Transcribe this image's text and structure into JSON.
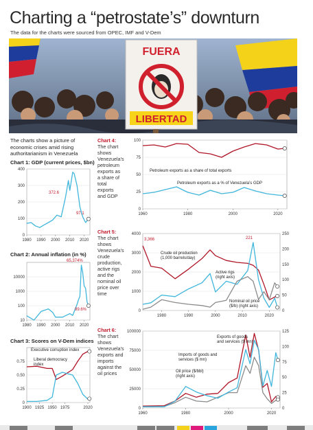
{
  "header": {
    "title": "Charting a “petrostate’s” downturn",
    "subtitle": "The data for the charts were sourced from OPEC, IMF and V-Dem"
  },
  "photo": {
    "sign_line1": "FUERA",
    "sign_line2": "LIBERTAD"
  },
  "intro_text": "The charts show a picture of economic crises amid rising authoritarianism in Venezuela",
  "colors": {
    "red": "#b01426",
    "blue": "#3fb6dc",
    "gray": "#8a8a8a",
    "accent_red": "#c2192b"
  },
  "chart_data": [
    {
      "id": "chart1",
      "type": "line",
      "title": "Chart 1: GDP (current prices, $bn)",
      "x": [
        1980,
        1983,
        1986,
        1989,
        1992,
        1995,
        1998,
        2001,
        2004,
        2007,
        2009,
        2010,
        2012,
        2013,
        2015,
        2017,
        2019,
        2021,
        2023
      ],
      "series": [
        {
          "values": [
            70,
            75,
            55,
            45,
            60,
            75,
            90,
            120,
            110,
            230,
            330,
            270,
            380,
            372.6,
            300,
            170,
            110,
            75,
            97
          ]
        }
      ],
      "ylim": [
        0,
        400
      ],
      "yticks": [
        0,
        100,
        200,
        300,
        400
      ],
      "xticks": [
        1980,
        1990,
        2000,
        2010,
        2020
      ],
      "annotations": [
        "372.6",
        "97.1"
      ]
    },
    {
      "id": "chart2",
      "type": "line",
      "title": "Chart 2: Annual inflation (in %)",
      "scale": "log",
      "x": [
        1980,
        1985,
        1990,
        1995,
        1998,
        2000,
        2005,
        2010,
        2012,
        2015,
        2016,
        2017,
        2018,
        2019,
        2020,
        2021,
        2022,
        2023
      ],
      "series": [
        {
          "values": [
            20,
            10,
            40,
            60,
            35,
            16,
            16,
            28,
            21,
            120,
            255,
            440,
            65374,
            19906,
            2355,
            1588,
            186,
            99.6
          ]
        }
      ],
      "ylim": [
        10,
        100000
      ],
      "yticks": [
        "10",
        "100",
        "1000",
        "10000"
      ],
      "xticks": [
        1980,
        1990,
        2000,
        2010,
        2020
      ],
      "annotations": [
        "65,374%",
        "99.6%"
      ]
    },
    {
      "id": "chart3",
      "type": "line",
      "title": "Chart 3: Scores on V-Dem indices",
      "x": [
        1900,
        1920,
        1940,
        1950,
        1958,
        1970,
        1990,
        2000,
        2010,
        2020,
        2023
      ],
      "series": [
        {
          "name": "Executive corruption index",
          "values": [
            0.65,
            0.66,
            0.62,
            0.62,
            0.42,
            0.48,
            0.6,
            0.75,
            0.88,
            0.93,
            0.93
          ]
        },
        {
          "name": "Liberal democracy index",
          "values": [
            0.02,
            0.02,
            0.04,
            0.1,
            0.5,
            0.55,
            0.5,
            0.35,
            0.15,
            0.06,
            0.07
          ]
        }
      ],
      "ylim": [
        0,
        1
      ],
      "yticks": [
        "0",
        "0.25",
        "0.50",
        "0.75"
      ],
      "xticks": [
        "1900",
        "1925",
        "1950",
        "1975",
        "2020"
      ]
    },
    {
      "id": "chart4",
      "type": "line",
      "label": "Chart 4:",
      "description": "The chart shows Venezuela’s petroleum exports as a share of total exports and GDP",
      "x": [
        1960,
        1965,
        1970,
        1975,
        1980,
        1985,
        1990,
        1995,
        2000,
        2005,
        2010,
        2015,
        2020,
        2023
      ],
      "series": [
        {
          "name": "Petroleum exports as a share of total exports",
          "values": [
            92,
            93,
            90,
            95,
            94,
            82,
            80,
            75,
            84,
            90,
            95,
            93,
            87,
            88
          ]
        },
        {
          "name": "Petroleum exports as a % of Venezuela’s GDP",
          "values": [
            22,
            24,
            28,
            32,
            24,
            20,
            27,
            22,
            24,
            31,
            26,
            22,
            20,
            19
          ]
        }
      ],
      "ylim": [
        0,
        100
      ],
      "yticks": [
        0,
        25,
        50,
        75,
        100
      ],
      "xticks": [
        1960,
        1980,
        2000,
        2020
      ]
    },
    {
      "id": "chart5",
      "type": "line",
      "label": "Chart 5:",
      "description": "The chart shows Venezuela’s crude production, active rigs and the nominal oil price over time",
      "x": [
        1973,
        1976,
        1980,
        1985,
        1990,
        1995,
        1998,
        2000,
        2004,
        2008,
        2012,
        2014,
        2016,
        2018,
        2020,
        2022,
        2023
      ],
      "series": [
        {
          "name": "Crude oil production (1,000 barrels/day)",
          "values": [
            3366,
            2300,
            2200,
            1650,
            2150,
            2700,
            3150,
            2850,
            2600,
            2500,
            2450,
            2350,
            2100,
            1350,
            550,
            700,
            750
          ]
        },
        {
          "name": "Active rigs (right axis)",
          "values": [
            20,
            25,
            50,
            45,
            70,
            90,
            120,
            60,
            95,
            85,
            130,
            221,
            100,
            40,
            10,
            40,
            10
          ]
        },
        {
          "name": "Nominal oil price ($/b) (right axis)",
          "values": [
            4,
            11,
            35,
            26,
            20,
            16,
            11,
            26,
            33,
            95,
            110,
            95,
            36,
            61,
            35,
            90,
            78
          ]
        }
      ],
      "ylim": [
        0,
        4000
      ],
      "ylim_right": [
        0,
        250
      ],
      "yticks": [
        0,
        1000,
        2000,
        3000,
        4000
      ],
      "yticks_right": [
        0,
        50,
        100,
        150,
        200,
        250
      ],
      "xticks": [
        1980,
        1990,
        2000,
        2010,
        2020
      ],
      "annotations": [
        "3,366",
        "221"
      ]
    },
    {
      "id": "chart6",
      "type": "line",
      "label": "Chart 6:",
      "description": "The chart shows Venezuela’s exports and imports against the oil prices",
      "x": [
        1960,
        1970,
        1975,
        1980,
        1985,
        1990,
        1995,
        2000,
        2004,
        2008,
        2010,
        2012,
        2014,
        2016,
        2018,
        2020,
        2022,
        2023
      ],
      "series": [
        {
          "name": "Exports of goods and services ($ mn)",
          "values": [
            2500,
            3000,
            9000,
            19000,
            14000,
            18000,
            19000,
            33000,
            39000,
            95000,
            66000,
            97000,
            75000,
            27000,
            32000,
            8000,
            15000,
            14000
          ]
        },
        {
          "name": "Imports of goods and services ($ mn)",
          "values": [
            1800,
            2000,
            7000,
            14000,
            9000,
            8000,
            14000,
            20000,
            20000,
            55000,
            45000,
            66000,
            55000,
            20000,
            12000,
            6000,
            10000,
            11000
          ]
        },
        {
          "name": "Oil price ($/bbl) (right axis)",
          "values": [
            2,
            2,
            11,
            35,
            26,
            20,
            16,
            26,
            33,
            95,
            72,
            110,
            95,
            36,
            61,
            35,
            90,
            78
          ]
        }
      ],
      "ylim": [
        0,
        100000
      ],
      "ylim_right": [
        0,
        125
      ],
      "yticks": [
        0,
        25000,
        50000,
        75000,
        100000
      ],
      "yticks_right": [
        0,
        25,
        50,
        75,
        100,
        125
      ],
      "xticks": [
        1960,
        1980,
        2000,
        2020
      ]
    }
  ]
}
